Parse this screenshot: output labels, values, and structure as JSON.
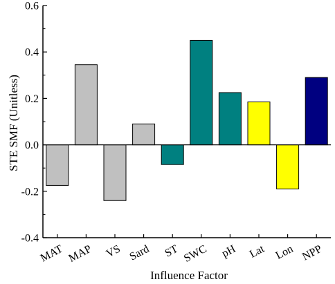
{
  "chart_data": {
    "type": "bar",
    "xlabel": "Influence Factor",
    "ylabel": "STE SMF (Unitless)",
    "ylim": [
      -0.4,
      0.6
    ],
    "yticks": [
      "-0.4",
      "-0.2",
      "0.0",
      "0.2",
      "0.4",
      "0.6"
    ],
    "grid": false,
    "categories": [
      "MAT",
      "MAP",
      "VS",
      "Sard",
      "ST",
      "SWC",
      "pH",
      "Lat",
      "Lon",
      "NPP"
    ],
    "values": [
      -0.175,
      0.345,
      -0.24,
      0.09,
      -0.085,
      0.45,
      0.225,
      0.185,
      -0.19,
      0.29
    ],
    "bar_colors": [
      "#c0c0c0",
      "#c0c0c0",
      "#c0c0c0",
      "#c0c0c0",
      "#008080",
      "#008080",
      "#008080",
      "#ffff00",
      "#ffff00",
      "#000080"
    ],
    "axis_color": "#000000"
  }
}
